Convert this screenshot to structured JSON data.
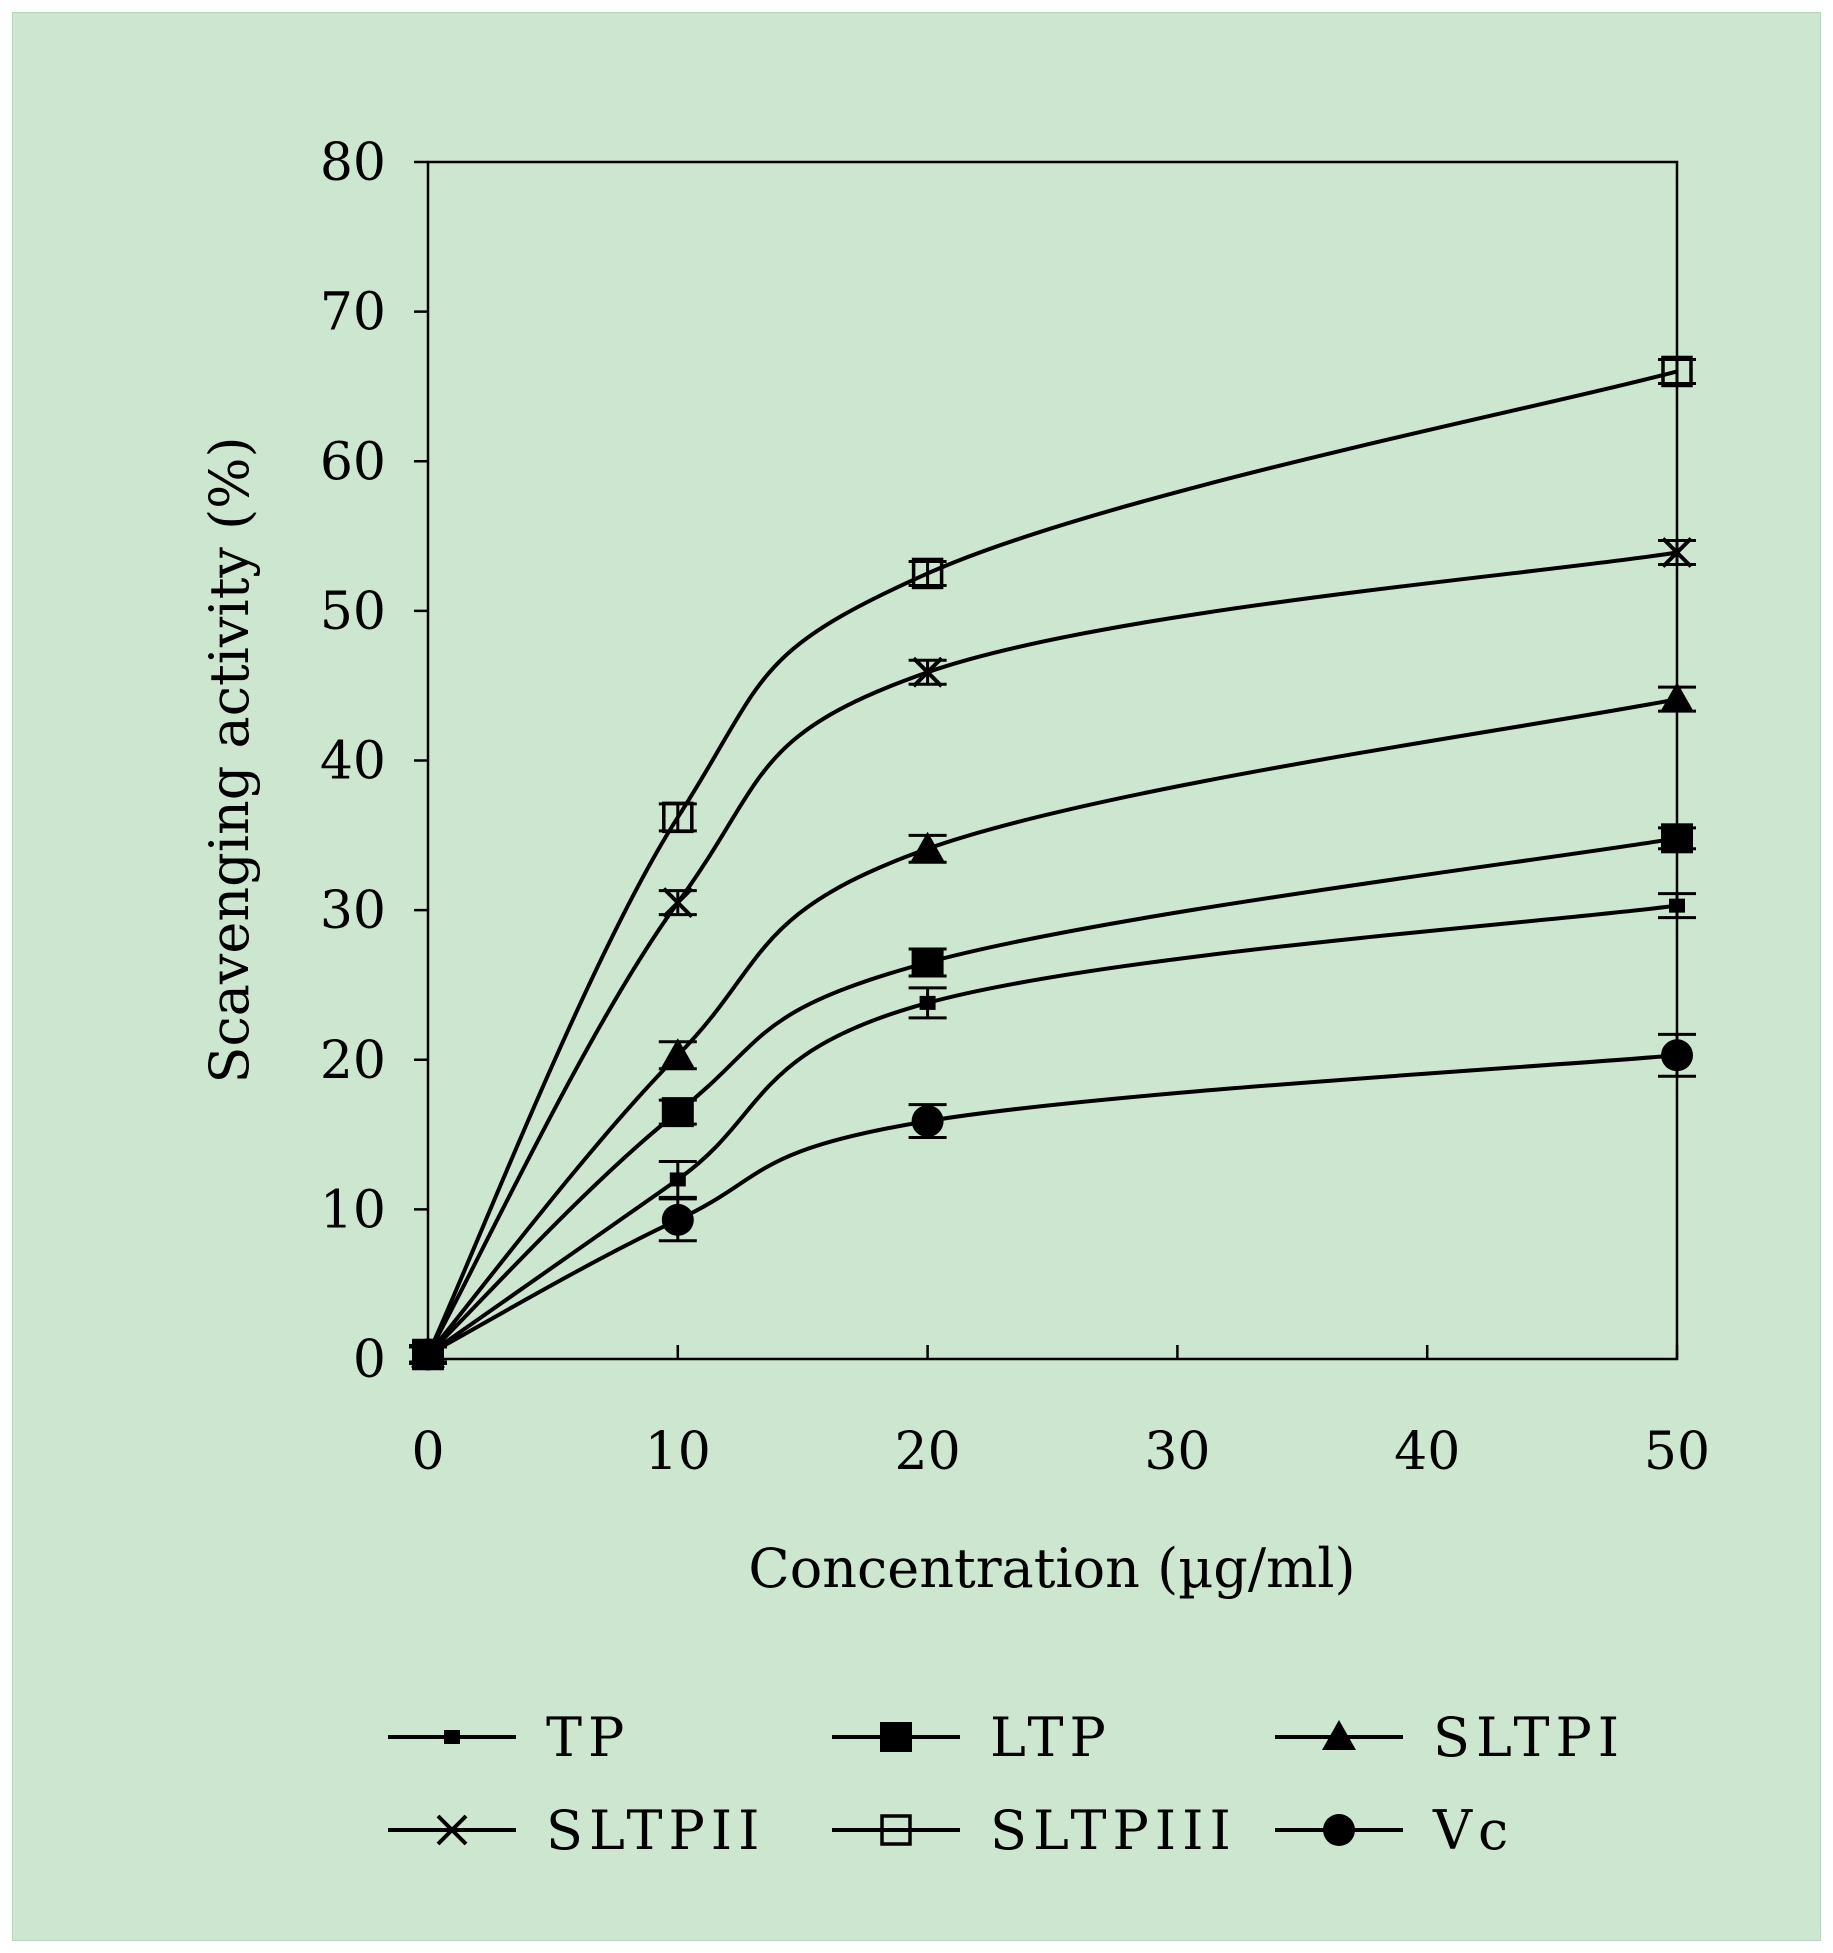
{
  "colors": {
    "background": "#cde6d0",
    "ink": "#000000"
  },
  "chart_data": {
    "type": "line",
    "xlabel": "Concentration (µg/ml)",
    "ylabel": "Scavenging activity (%)",
    "xlim": [
      0,
      50
    ],
    "ylim": [
      0,
      80
    ],
    "xticks": [
      0,
      10,
      20,
      30,
      40,
      50
    ],
    "yticks": [
      0,
      10,
      20,
      30,
      40,
      50,
      60,
      70,
      80
    ],
    "grid": false,
    "legend_position": "bottom",
    "x": [
      0,
      10,
      20,
      50
    ],
    "series": [
      {
        "name": "TP",
        "marker": "small-square",
        "values": [
          0.3,
          12.0,
          23.8,
          30.3
        ],
        "errors": [
          0.6,
          1.2,
          1.0,
          0.8
        ]
      },
      {
        "name": "LTP",
        "marker": "filled-square",
        "values": [
          0.3,
          16.5,
          26.5,
          34.8
        ],
        "errors": [
          0.5,
          0.8,
          0.9,
          0.7
        ]
      },
      {
        "name": "SLTPI",
        "marker": "filled-triangle",
        "values": [
          0.3,
          20.3,
          34.1,
          44.1
        ],
        "errors": [
          0.5,
          0.9,
          0.9,
          0.8
        ]
      },
      {
        "name": "SLTPII",
        "marker": "cross",
        "values": [
          0.3,
          30.5,
          45.9,
          53.9
        ],
        "errors": [
          0.5,
          0.8,
          0.8,
          0.8
        ]
      },
      {
        "name": "SLTPIII",
        "marker": "open-square",
        "values": [
          0.3,
          36.2,
          52.5,
          66.0
        ],
        "errors": [
          0.5,
          0.9,
          0.8,
          0.8
        ]
      },
      {
        "name": "Vc",
        "marker": "filled-circle",
        "values": [
          0.3,
          9.3,
          15.9,
          20.3
        ],
        "errors": [
          0.5,
          1.4,
          1.1,
          1.4
        ]
      }
    ]
  }
}
